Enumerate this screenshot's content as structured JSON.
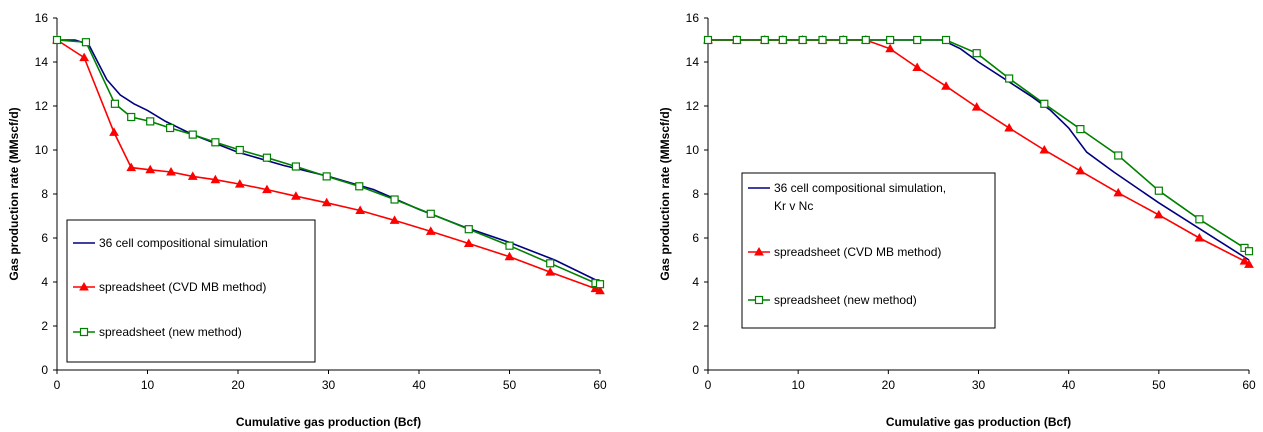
{
  "chart_data": [
    {
      "type": "line",
      "xlabel": "Cumulative gas production (Bcf)",
      "ylabel": "Gas production rate (MMscf/d)",
      "xlim": [
        0,
        60
      ],
      "ylim": [
        0,
        16
      ],
      "x_ticks": [
        "0",
        "10",
        "20",
        "30",
        "40",
        "50",
        "60"
      ],
      "y_ticks": [
        "0",
        "2",
        "4",
        "6",
        "8",
        "10",
        "12",
        "14",
        "16"
      ],
      "grid": false,
      "legend_position": "bottom-left",
      "series": [
        {
          "name": "36 cell compositional simulation",
          "color": "#000080",
          "marker": "none",
          "x": [
            0,
            2,
            3.5,
            4.5,
            5.5,
            7,
            8.5,
            10,
            12,
            15,
            20,
            25,
            30,
            35,
            40,
            45,
            50,
            55,
            60
          ],
          "y": [
            15,
            15,
            14.8,
            14,
            13.2,
            12.5,
            12.1,
            11.8,
            11.3,
            10.7,
            9.9,
            9.3,
            8.8,
            8.2,
            7.3,
            6.5,
            5.8,
            5.0,
            4.0
          ]
        },
        {
          "name": "spreadsheet (CVD MB method)",
          "color": "#ff0000",
          "marker": "triangle",
          "x": [
            0,
            3,
            6.3,
            8.2,
            10.3,
            12.6,
            15,
            17.5,
            20.2,
            23.2,
            26.4,
            29.8,
            33.5,
            37.3,
            41.3,
            45.5,
            50,
            54.5,
            59.5,
            60
          ],
          "y": [
            15,
            14.2,
            10.8,
            9.2,
            9.1,
            9.0,
            8.8,
            8.65,
            8.45,
            8.2,
            7.9,
            7.6,
            7.25,
            6.8,
            6.3,
            5.75,
            5.15,
            4.45,
            3.7,
            3.6
          ]
        },
        {
          "name": "spreadsheet (new method)",
          "color": "#008000",
          "marker": "square",
          "x": [
            0,
            3.2,
            6.4,
            8.2,
            10.3,
            12.5,
            15,
            17.5,
            20.2,
            23.2,
            26.4,
            29.8,
            33.4,
            37.3,
            41.3,
            45.5,
            50,
            54.5,
            59.5,
            60
          ],
          "y": [
            15,
            14.9,
            12.1,
            11.5,
            11.3,
            11.0,
            10.7,
            10.35,
            10.0,
            9.65,
            9.25,
            8.8,
            8.35,
            7.75,
            7.1,
            6.4,
            5.65,
            4.85,
            3.95,
            3.9
          ]
        }
      ]
    },
    {
      "type": "line",
      "xlabel": "Cumulative gas production (Bcf)",
      "ylabel": "Gas production rate (MMscf/d)",
      "xlim": [
        0,
        60
      ],
      "ylim": [
        0,
        16
      ],
      "x_ticks": [
        "0",
        "10",
        "20",
        "30",
        "40",
        "50",
        "60"
      ],
      "y_ticks": [
        "0",
        "2",
        "4",
        "6",
        "8",
        "10",
        "12",
        "14",
        "16"
      ],
      "grid": false,
      "legend_position": "middle-left",
      "series": [
        {
          "name": "36 cell compositional simulation, Kr v Nc",
          "color": "#000080",
          "marker": "none",
          "x": [
            0,
            10,
            20,
            26,
            28,
            30,
            33,
            36,
            38,
            40,
            42,
            45,
            50,
            55,
            60
          ],
          "y": [
            15,
            15,
            15,
            15,
            14.6,
            14.0,
            13.2,
            12.4,
            11.8,
            11.0,
            9.9,
            9.0,
            7.6,
            6.3,
            5.0
          ]
        },
        {
          "name": "spreadsheet (CVD MB method)",
          "color": "#ff0000",
          "marker": "triangle",
          "x": [
            0,
            3.2,
            6.3,
            8.3,
            10.5,
            12.7,
            15,
            17.5,
            20.2,
            23.2,
            26.4,
            29.8,
            33.4,
            37.3,
            41.3,
            45.5,
            50,
            54.5,
            59.5,
            60
          ],
          "y": [
            15,
            15,
            15,
            15,
            15,
            15,
            15,
            15,
            14.6,
            13.75,
            12.9,
            11.95,
            11.0,
            10.0,
            9.05,
            8.05,
            7.05,
            6.0,
            4.95,
            4.8
          ]
        },
        {
          "name": "spreadsheet (new method)",
          "color": "#008000",
          "marker": "square",
          "x": [
            0,
            3.2,
            6.3,
            8.3,
            10.5,
            12.7,
            15,
            17.5,
            20.2,
            23.2,
            26.4,
            29.8,
            33.4,
            37.3,
            41.3,
            45.5,
            50,
            54.5,
            59.5,
            60
          ],
          "y": [
            15,
            15,
            15,
            15,
            15,
            15,
            15,
            15,
            15,
            15,
            15,
            14.4,
            13.25,
            12.1,
            10.95,
            9.75,
            8.15,
            6.85,
            5.55,
            5.4
          ]
        }
      ]
    }
  ]
}
